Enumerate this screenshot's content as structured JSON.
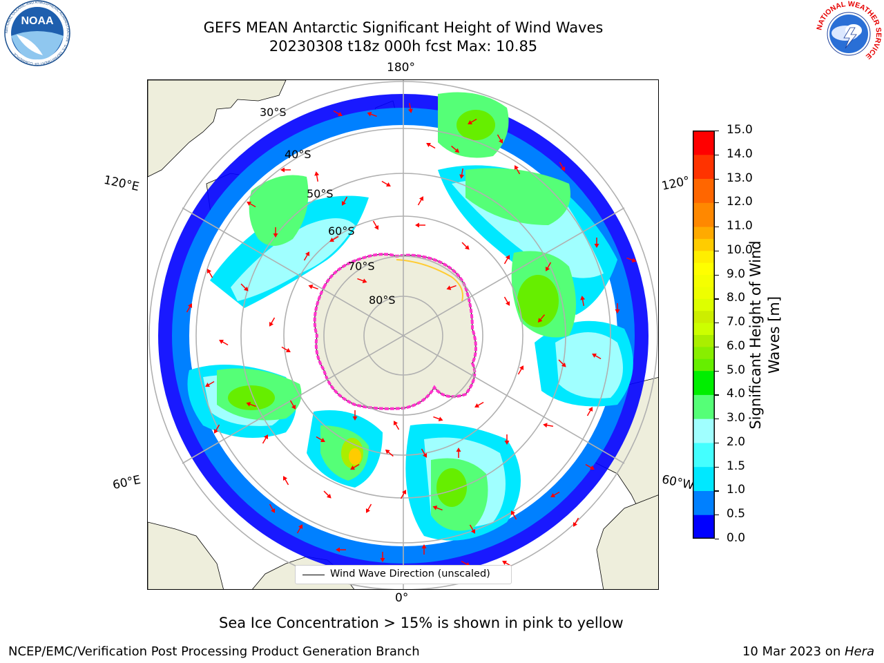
{
  "header": {
    "title_line1": "GEFS MEAN Antarctic Significant Height of Wind Waves",
    "title_line2": "20230308 t18z 000h fcst   Max: 10.85"
  },
  "logos": {
    "left": {
      "name": "noaa-logo",
      "text": "NOAA",
      "ring_text": "NATIONAL OCEANIC AND ATMOSPHERIC ADMINISTRATION · U.S. DEPARTMENT OF COMMERCE"
    },
    "right": {
      "name": "nws-logo",
      "ring_text": "NATIONAL WEATHER SERVICE"
    }
  },
  "map": {
    "projection": "south-polar-stereographic",
    "latitude_labels": [
      "30°S",
      "40°S",
      "50°S",
      "60°S",
      "70°S",
      "80°S"
    ],
    "longitude_labels": {
      "top": "180°",
      "bottom": "0°",
      "upper_left": "120°E",
      "upper_right": "120°",
      "lower_left": "60°E",
      "lower_right": "60°W"
    },
    "legend": {
      "label": "Wind Wave Direction (unscaled)"
    },
    "colors": {
      "land": "#eeeedc",
      "ocean_calm": "#ffffff",
      "grid": "#b0b0b0",
      "arrow": "#ff0000",
      "sea_ice": "#ff33cc"
    }
  },
  "colorbar": {
    "title_line1": "Significant Height of Wind",
    "title_line2": "Waves [m]",
    "ticks": [
      "0.0",
      "0.5",
      "1.0",
      "1.5",
      "2.0",
      "3.0",
      "4.0",
      "5.0",
      "6.0",
      "7.0",
      "8.0",
      "9.0",
      "10.0",
      "11.0",
      "12.0",
      "13.0",
      "14.0",
      "15.0"
    ],
    "levels": [
      {
        "from": 0.0,
        "to": 0.5,
        "color": "#0000ff"
      },
      {
        "from": 0.5,
        "to": 1.0,
        "color": "#0080ff"
      },
      {
        "from": 1.0,
        "to": 1.5,
        "color": "#00e8ff"
      },
      {
        "from": 1.5,
        "to": 2.0,
        "color": "#44ffff"
      },
      {
        "from": 2.0,
        "to": 3.0,
        "color": "#a0ffff"
      },
      {
        "from": 3.0,
        "to": 4.0,
        "color": "#55ff77"
      },
      {
        "from": 4.0,
        "to": 5.0,
        "color": "#00ee00"
      },
      {
        "from": 5.0,
        "to": 5.5,
        "color": "#66ee00"
      },
      {
        "from": 5.5,
        "to": 6.0,
        "color": "#88ee00"
      },
      {
        "from": 6.0,
        "to": 6.5,
        "color": "#aaee00"
      },
      {
        "from": 6.5,
        "to": 7.0,
        "color": "#ccff00"
      },
      {
        "from": 7.0,
        "to": 7.5,
        "color": "#ccee00"
      },
      {
        "from": 7.5,
        "to": 8.0,
        "color": "#ddff00"
      },
      {
        "from": 8.0,
        "to": 8.5,
        "color": "#eeff00"
      },
      {
        "from": 8.5,
        "to": 9.0,
        "color": "#f5ff00"
      },
      {
        "from": 9.0,
        "to": 9.5,
        "color": "#ffff00"
      },
      {
        "from": 9.5,
        "to": 10.0,
        "color": "#ffee00"
      },
      {
        "from": 10.0,
        "to": 10.5,
        "color": "#ffcc00"
      },
      {
        "from": 10.5,
        "to": 11.0,
        "color": "#ffaa00"
      },
      {
        "from": 11.0,
        "to": 12.0,
        "color": "#ff8800"
      },
      {
        "from": 12.0,
        "to": 13.0,
        "color": "#ff6600"
      },
      {
        "from": 13.0,
        "to": 14.0,
        "color": "#ff3300"
      },
      {
        "from": 14.0,
        "to": 15.0,
        "color": "#ff0000"
      }
    ]
  },
  "notes": {
    "sea_ice": "Sea Ice Concentration > 15% is shown in pink to yellow"
  },
  "footer": {
    "left": "NCEP/EMC/Verification Post Processing Product Generation Branch",
    "right_prefix": "10 Mar 2023 on ",
    "right_host": "Hera"
  }
}
